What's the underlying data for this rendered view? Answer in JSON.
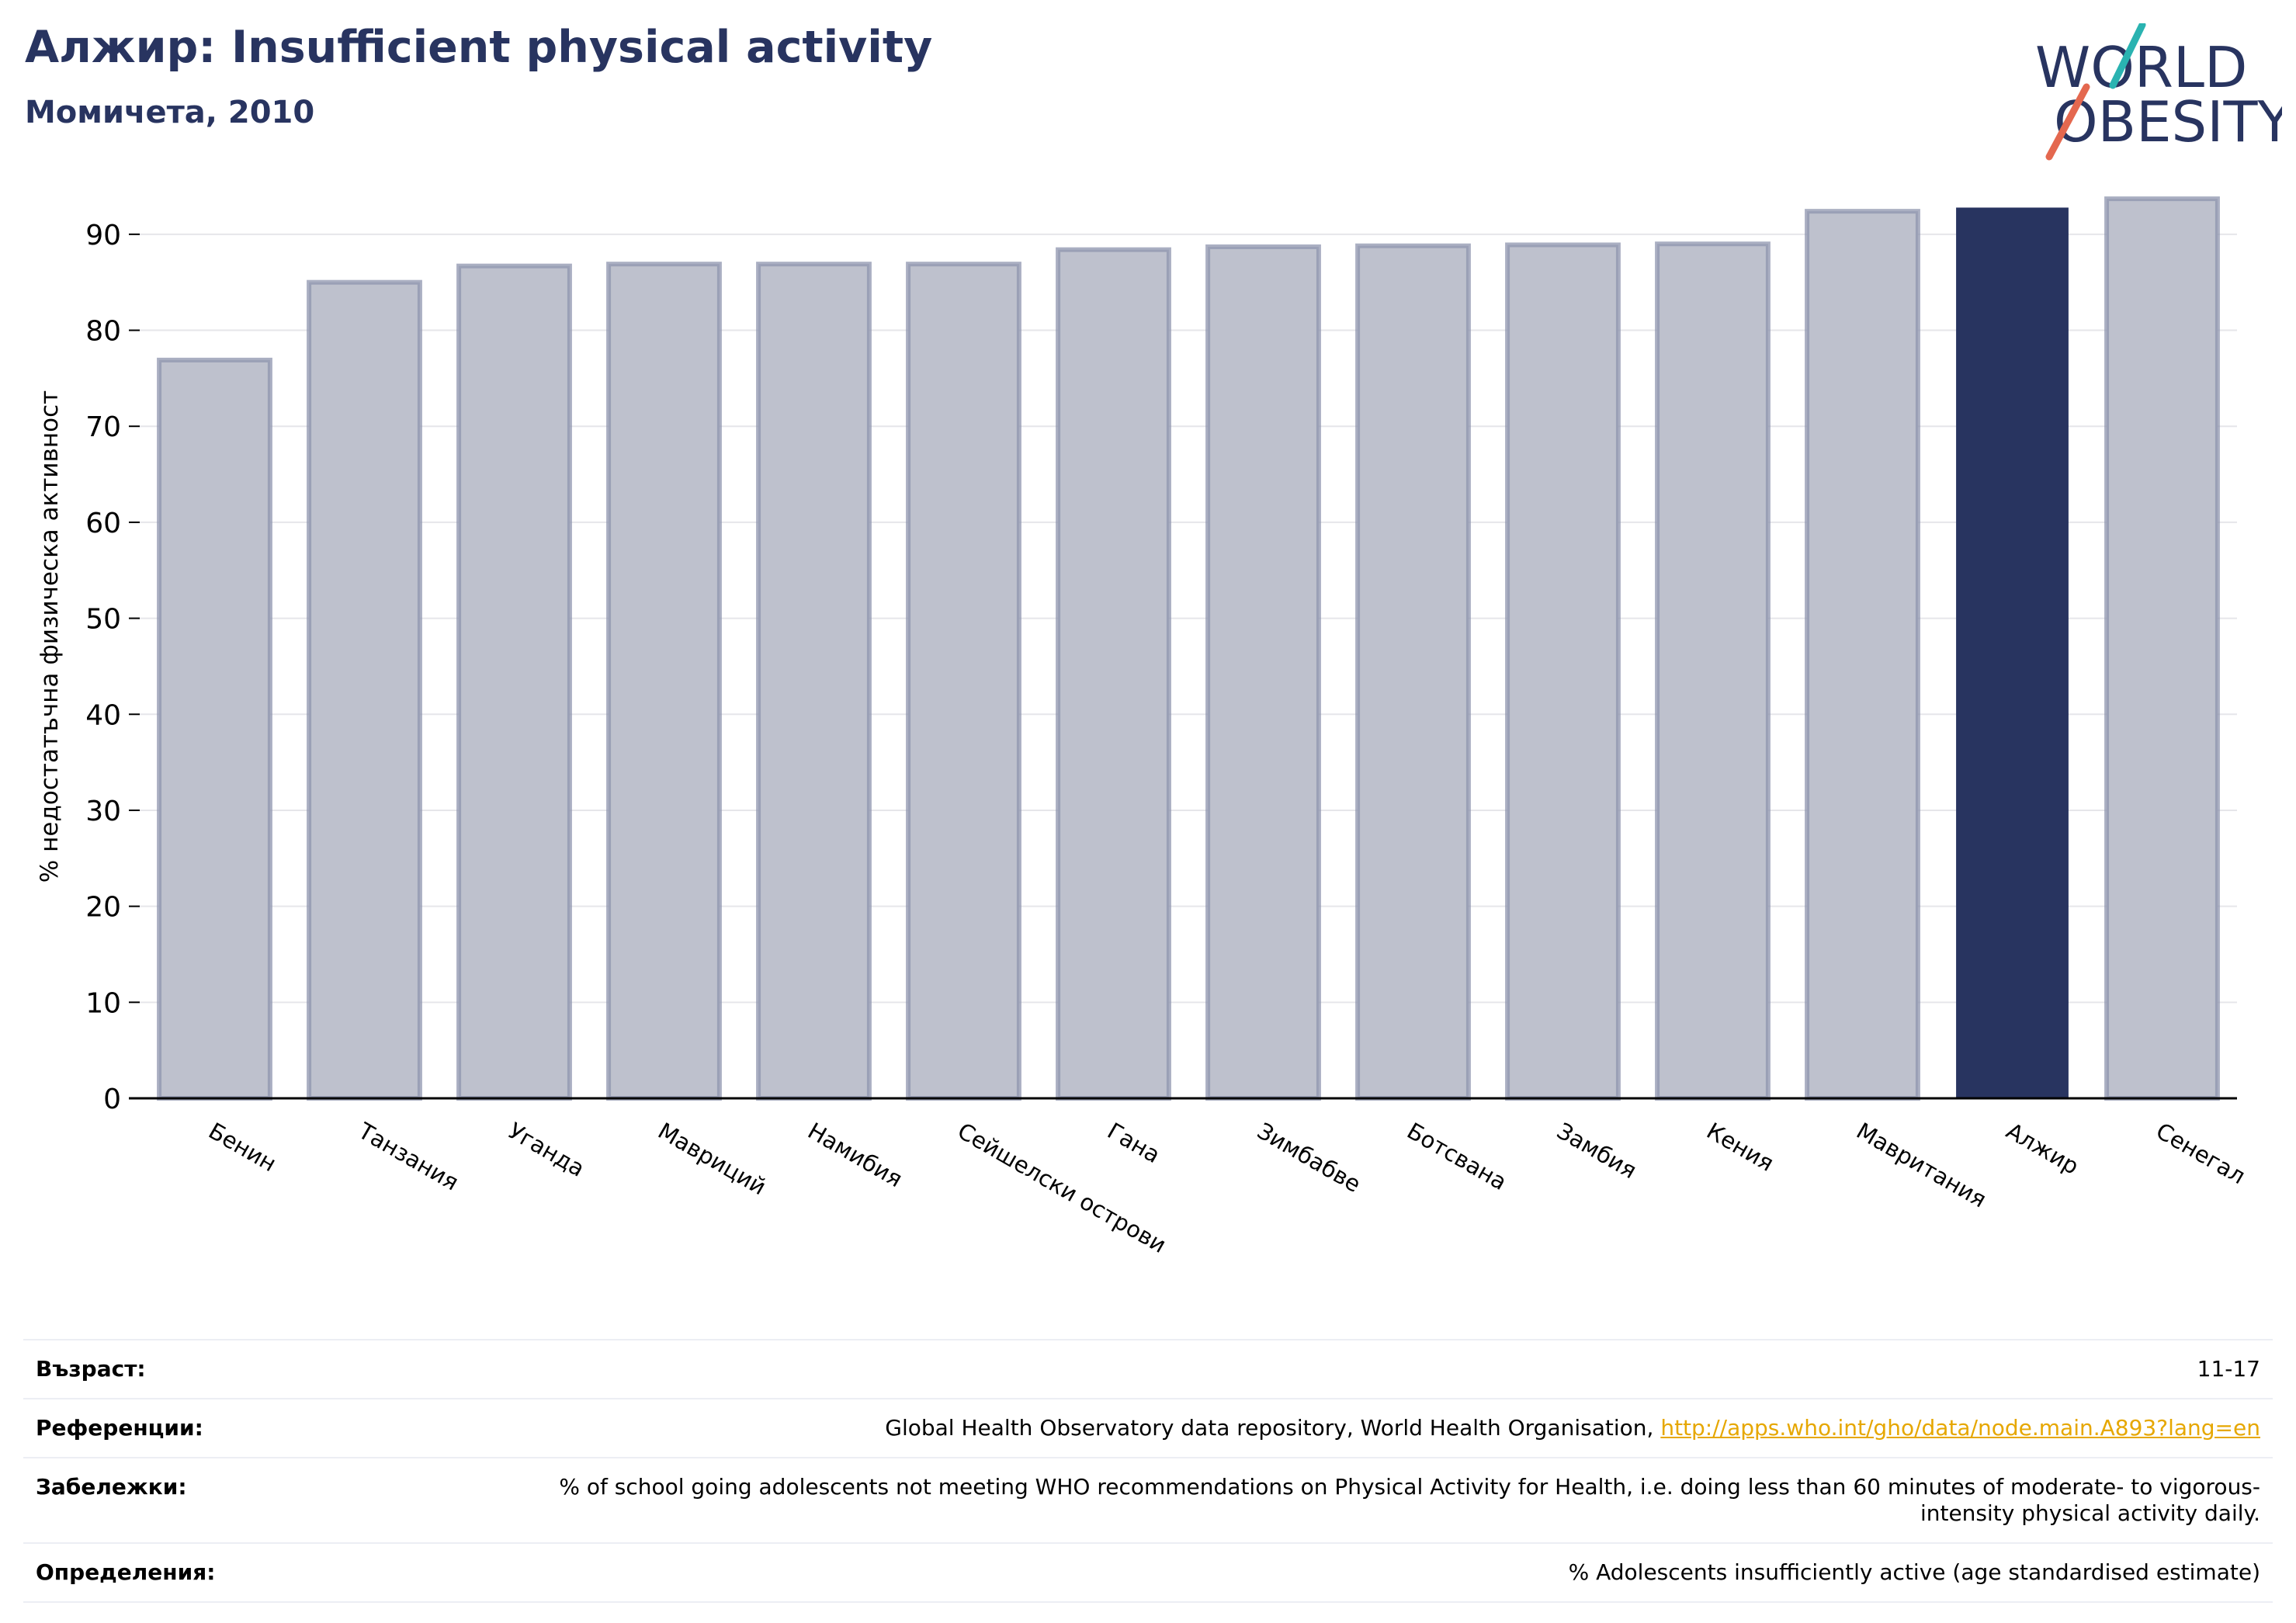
{
  "header": {
    "title": "Алжир: Insufficient physical activity",
    "subtitle": "Момичета, 2010"
  },
  "logo": {
    "line1": "WORLD",
    "line2": "OBESITY",
    "accent_teal": "#2ab3b1",
    "accent_red": "#e4684f"
  },
  "colors": {
    "bar": "#283460",
    "bar_muted": "#bec1cd",
    "bar_border": "#8e94ad",
    "grid": "#e6e6ea"
  },
  "chart_data": {
    "type": "bar",
    "title": "Алжир: Insufficient physical activity",
    "subtitle": "Момичета, 2010",
    "ylabel": "% недостатъчна физическа активност",
    "xlabel": "",
    "ylim": [
      0,
      95
    ],
    "yticks": [
      0,
      10,
      20,
      30,
      40,
      50,
      60,
      70,
      80,
      90
    ],
    "grid": true,
    "categories": [
      "Бенин",
      "Танзания",
      "Уганда",
      "Мавриций",
      "Намибия",
      "Сейшелски острови",
      "Гана",
      "Зимбабве",
      "Ботсвана",
      "Замбия",
      "Кения",
      "Мавритания",
      "Алжир",
      "Сенегал"
    ],
    "values": [
      76.9,
      85.0,
      86.7,
      86.9,
      86.9,
      86.9,
      88.4,
      88.7,
      88.8,
      88.9,
      89.0,
      92.4,
      92.7,
      93.7
    ],
    "highlight": "Алжир"
  },
  "info": [
    {
      "key": "Възраст:",
      "value": "11-17"
    },
    {
      "key": "Референции:",
      "value": "Global Health Observatory data repository, World Health Organisation, ",
      "link": "http://apps.who.int/gho/data/node.main.A893?lang=en"
    },
    {
      "key": "Забележки:",
      "value": "% of school going adolescents not meeting WHO recommendations on Physical Activity for Health, i.e. doing less than 60 minutes of moderate- to vigorous-intensity physical activity daily."
    },
    {
      "key": "Определения:",
      "value": "% Adolescents insufficiently active (age standardised estimate)"
    }
  ]
}
